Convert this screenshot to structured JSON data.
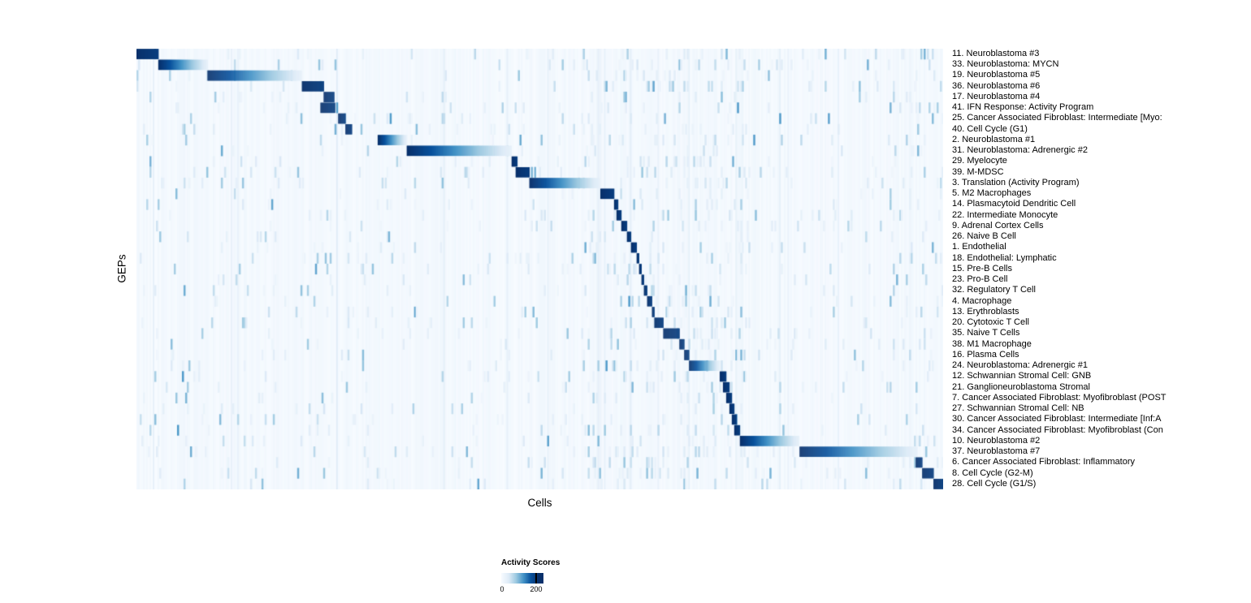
{
  "figure": {
    "xlabel": "Cells",
    "ylabel": "GEPs"
  },
  "legend": {
    "title": "Activity Scores",
    "min_label": "0",
    "max_label": "200"
  },
  "chart_data": {
    "type": "heatmap",
    "title": "",
    "xlabel": "Cells",
    "ylabel": "GEPs",
    "legend_position": "bottom",
    "colorbar": {
      "title": "Activity Scores",
      "min": 0,
      "max": 200,
      "colors": [
        "#f7fbff",
        "#deebf7",
        "#9ecae1",
        "#4292c6",
        "#08519c",
        "#08306b"
      ]
    },
    "description": "Diagonal block heatmap: each GEP (row) shows high activity in a contiguous block of cells; block_start/block_end are fractions of the cell axis where activity is high, fading left-to-right for wide blocks.",
    "rows": [
      {
        "label": "11. Neuroblastoma #3",
        "block_start": 0.0,
        "block_end": 0.027
      },
      {
        "label": "33. Neuroblastoma: MYCN",
        "block_start": 0.027,
        "block_end": 0.088
      },
      {
        "label": "19. Neuroblastoma #5",
        "block_start": 0.088,
        "block_end": 0.205
      },
      {
        "label": "36. Neuroblastoma #6",
        "block_start": 0.205,
        "block_end": 0.232
      },
      {
        "label": "17. Neuroblastoma #4",
        "block_start": 0.232,
        "block_end": 0.245
      },
      {
        "label": "41. IFN Response: Activity Program",
        "block_start": 0.228,
        "block_end": 0.246
      },
      {
        "label": "25. Cancer Associated Fibroblast: Intermediate [Myo:",
        "block_start": 0.25,
        "block_end": 0.259
      },
      {
        "label": "40. Cell Cycle (G1)",
        "block_start": 0.259,
        "block_end": 0.267
      },
      {
        "label": "2. Neuroblastoma #1",
        "block_start": 0.299,
        "block_end": 0.335
      },
      {
        "label": "31. Neuroblastoma: Adrenergic #2",
        "block_start": 0.335,
        "block_end": 0.465
      },
      {
        "label": "29. Myelocyte",
        "block_start": 0.465,
        "block_end": 0.472
      },
      {
        "label": "39. M-MDSC",
        "block_start": 0.47,
        "block_end": 0.487
      },
      {
        "label": "3. Translation (Activity Program)",
        "block_start": 0.487,
        "block_end": 0.575
      },
      {
        "label": "5. M2 Macrophages",
        "block_start": 0.575,
        "block_end": 0.592
      },
      {
        "label": "14. Plasmacytoid Dendritic Cell",
        "block_start": 0.592,
        "block_end": 0.597
      },
      {
        "label": "22. Intermediate Monocyte",
        "block_start": 0.595,
        "block_end": 0.601
      },
      {
        "label": "9. Adrenal Cortex Cells",
        "block_start": 0.601,
        "block_end": 0.608
      },
      {
        "label": "26. Naive B Cell",
        "block_start": 0.608,
        "block_end": 0.613
      },
      {
        "label": "1. Endothelial",
        "block_start": 0.613,
        "block_end": 0.62
      },
      {
        "label": "18. Endothelial: Lymphatic",
        "block_start": 0.62,
        "block_end": 0.623
      },
      {
        "label": "15. Pre-B Cells",
        "block_start": 0.623,
        "block_end": 0.626
      },
      {
        "label": "23. Pro-B Cell",
        "block_start": 0.626,
        "block_end": 0.629
      },
      {
        "label": "32. Regulatory T Cell",
        "block_start": 0.629,
        "block_end": 0.633
      },
      {
        "label": "4. Macrophage",
        "block_start": 0.633,
        "block_end": 0.639
      },
      {
        "label": "13. Erythroblasts",
        "block_start": 0.639,
        "block_end": 0.642
      },
      {
        "label": "20. Cytotoxic T Cell",
        "block_start": 0.642,
        "block_end": 0.653
      },
      {
        "label": "35. Naive T Cells",
        "block_start": 0.653,
        "block_end": 0.673
      },
      {
        "label": "38. M1 Macrophage",
        "block_start": 0.673,
        "block_end": 0.679
      },
      {
        "label": "16. Plasma Cells",
        "block_start": 0.679,
        "block_end": 0.685
      },
      {
        "label": "24. Neuroblastoma: Adrenergic #1",
        "block_start": 0.685,
        "block_end": 0.723
      },
      {
        "label": "12. Schwannian Stromal Cell: GNB",
        "block_start": 0.723,
        "block_end": 0.731
      },
      {
        "label": "21. Ganglioneuroblastoma Stromal",
        "block_start": 0.727,
        "block_end": 0.735
      },
      {
        "label": "7. Cancer Associated Fibroblast: Myofibroblast (POST",
        "block_start": 0.731,
        "block_end": 0.738
      },
      {
        "label": "27. Schwannian Stromal Cell: NB",
        "block_start": 0.735,
        "block_end": 0.741
      },
      {
        "label": "30. Cancer Associated Fibroblast: Intermediate [Inf:A",
        "block_start": 0.738,
        "block_end": 0.744
      },
      {
        "label": "34. Cancer Associated Fibroblast: Myofibroblast (Con",
        "block_start": 0.741,
        "block_end": 0.748
      },
      {
        "label": "10. Neuroblastoma #2",
        "block_start": 0.748,
        "block_end": 0.822
      },
      {
        "label": "37. Neuroblastoma #7",
        "block_start": 0.822,
        "block_end": 0.968
      },
      {
        "label": "6. Cancer Associated Fibroblast: Inflammatory",
        "block_start": 0.966,
        "block_end": 0.974
      },
      {
        "label": "8. Cell Cycle (G2-M)",
        "block_start": 0.974,
        "block_end": 0.988
      },
      {
        "label": "28. Cell Cycle (G1/S)",
        "block_start": 0.988,
        "block_end": 1.0
      }
    ]
  }
}
